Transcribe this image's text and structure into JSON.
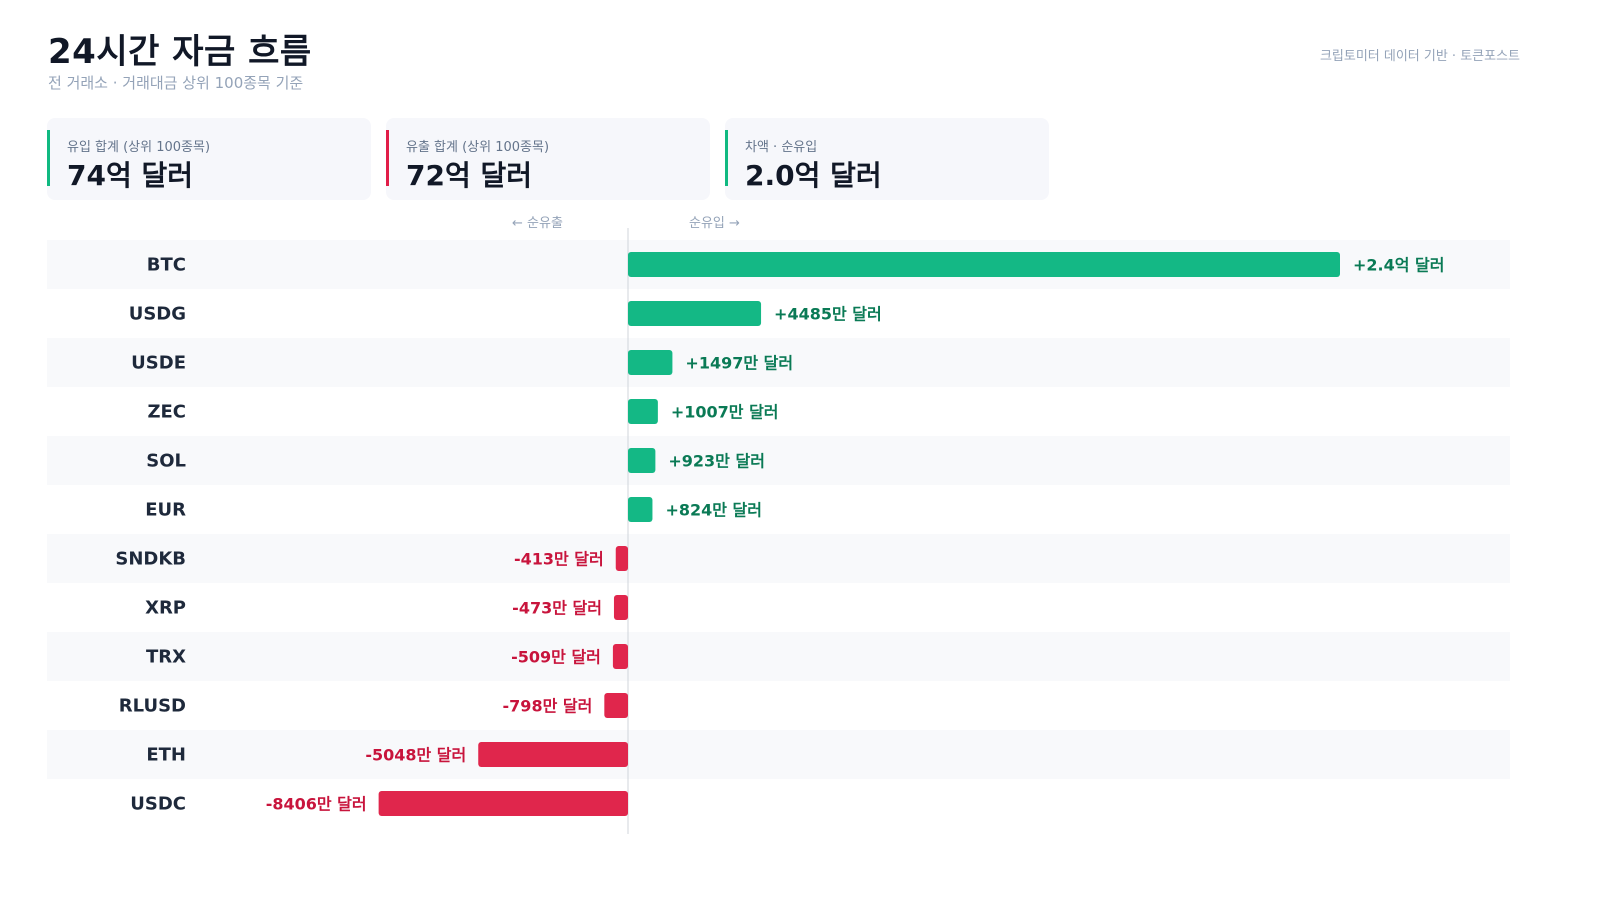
{
  "header": {
    "title": "24시간 자금 흐름",
    "subtitle": "전 거래소 · 거래대금 상위 100종목 기준",
    "source": "크립토미터 데이터 기반 · 토큰포스트"
  },
  "cards": [
    {
      "label": "유입 합계 (상위 100종목)",
      "value": "74억 달러",
      "color": "#10b981"
    },
    {
      "label": "유출 합계 (상위 100종목)",
      "value": "72억 달러",
      "color": "#e11d48"
    },
    {
      "label": "차액 · 순유입",
      "value": "2.0억 달러",
      "color": "#10b981"
    }
  ],
  "direction": {
    "outflow": "← 순유출",
    "inflow": "순유입 →"
  },
  "colors": {
    "positive": "#14b885",
    "negative": "#e0264c",
    "positive_text": "#0a7a55",
    "negative_text": "#c8143c",
    "row_alt": "#f8f9fb",
    "axis": "#d1d5db"
  },
  "chart_data": {
    "type": "bar",
    "orientation": "horizontal",
    "unit": "USD (만 달러)",
    "categories": [
      "BTC",
      "USDG",
      "USDE",
      "ZEC",
      "SOL",
      "EUR",
      "SNDKB",
      "XRP",
      "TRX",
      "RLUSD",
      "ETH",
      "USDC"
    ],
    "values": [
      24000,
      4485,
      1497,
      1007,
      923,
      824,
      -413,
      -473,
      -509,
      -798,
      -5048,
      -8406
    ],
    "labels": [
      "+2.4억 달러",
      "+4485만 달러",
      "+1497만 달러",
      "+1007만 달러",
      "+923만 달러",
      "+824만 달러",
      "-413만 달러",
      "-473만 달러",
      "-509만 달러",
      "-798만 달러",
      "-5048만 달러",
      "-8406만 달러"
    ],
    "grid": false,
    "legend": "none"
  }
}
